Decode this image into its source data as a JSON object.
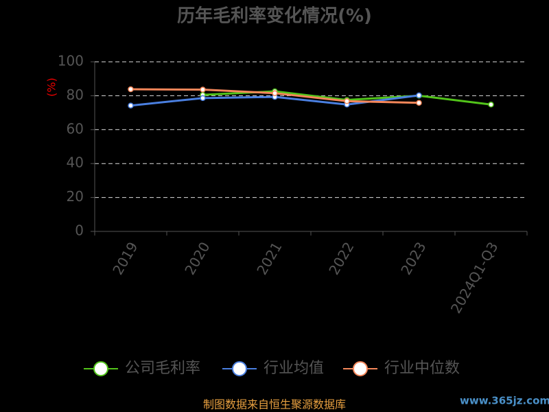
{
  "chart_data": {
    "type": "line",
    "title": "历年毛利率变化情况(%)",
    "y_label": "(%)",
    "categories": [
      "2019",
      "2020",
      "2021",
      "2022",
      "2023",
      "2024Q1-Q3"
    ],
    "series": [
      {
        "name": "公司毛利率",
        "color": "#52c41a",
        "values": [
          null,
          80.5,
          82.6,
          77.5,
          80,
          74.8
        ]
      },
      {
        "name": "行业均值",
        "color": "#4a7fe0",
        "values": [
          74.2,
          78.6,
          79.3,
          74.8,
          80.2,
          null
        ]
      },
      {
        "name": "行业中位数",
        "color": "#f5875a",
        "values": [
          83.8,
          83.6,
          81.5,
          76.8,
          75.8,
          null
        ]
      }
    ],
    "ylim": [
      0,
      100
    ],
    "yticks": [
      0,
      20,
      40,
      60,
      80,
      100
    ],
    "grid": true,
    "source": "制图数据来自恒生聚源数据库",
    "watermark": "www.365jz.com"
  }
}
